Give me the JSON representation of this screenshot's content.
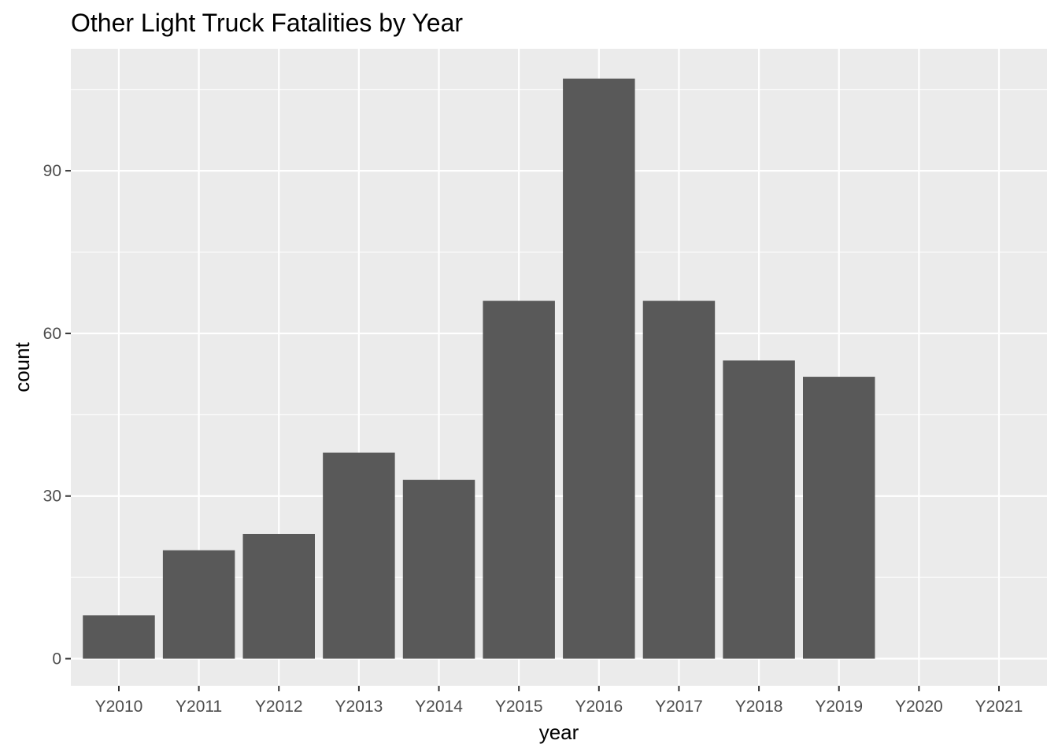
{
  "chart_data": {
    "type": "bar",
    "title": "Other Light Truck Fatalities by Year",
    "xlabel": "year",
    "ylabel": "count",
    "categories": [
      "Y2010",
      "Y2011",
      "Y2012",
      "Y2013",
      "Y2014",
      "Y2015",
      "Y2016",
      "Y2017",
      "Y2018",
      "Y2019",
      "Y2020",
      "Y2021"
    ],
    "values": [
      8,
      20,
      23,
      38,
      33,
      66,
      107,
      66,
      55,
      52,
      0,
      0
    ],
    "ylim": [
      -5,
      112.5
    ],
    "yticks": [
      0,
      30,
      60,
      90
    ],
    "grid": true,
    "legend": "none",
    "colors": {
      "bar": "#595959",
      "panel": "#ebebeb",
      "grid": "#ffffff"
    }
  }
}
